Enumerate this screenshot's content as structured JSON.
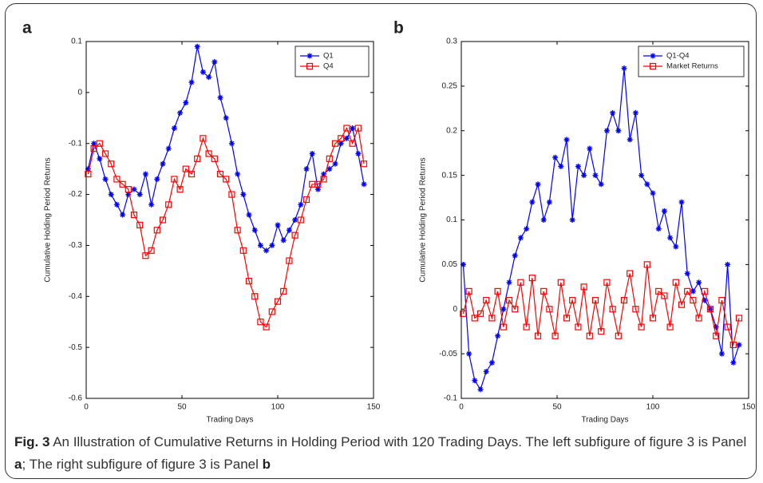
{
  "chart_data": [
    {
      "type": "line",
      "panel_label": "a",
      "xlabel": "Trading Days",
      "ylabel": "Cumulative Holding Period Returns",
      "x": [
        1,
        4,
        7,
        10,
        13,
        16,
        19,
        22,
        25,
        28,
        31,
        34,
        37,
        40,
        43,
        46,
        49,
        52,
        55,
        58,
        61,
        64,
        67,
        70,
        73,
        76,
        79,
        82,
        85,
        88,
        91,
        94,
        97,
        100,
        103,
        106,
        109,
        112,
        115,
        118,
        121,
        124,
        127,
        130,
        133,
        136,
        139,
        142,
        145
      ],
      "series": [
        {
          "name": "Q1",
          "color": "#0000ff",
          "marker": "star",
          "values": [
            -0.15,
            -0.1,
            -0.13,
            -0.17,
            -0.2,
            -0.22,
            -0.24,
            -0.2,
            -0.19,
            -0.2,
            -0.16,
            -0.22,
            -0.17,
            -0.14,
            -0.11,
            -0.07,
            -0.04,
            -0.02,
            0.02,
            0.09,
            0.04,
            0.03,
            0.06,
            -0.01,
            -0.05,
            -0.1,
            -0.16,
            -0.2,
            -0.24,
            -0.27,
            -0.3,
            -0.31,
            -0.3,
            -0.26,
            -0.29,
            -0.27,
            -0.25,
            -0.22,
            -0.15,
            -0.12,
            -0.19,
            -0.16,
            -0.15,
            -0.14,
            -0.1,
            -0.09,
            -0.07,
            -0.12,
            -0.18
          ]
        },
        {
          "name": "Q4",
          "color": "#ff0000",
          "marker": "square",
          "values": [
            -0.16,
            -0.11,
            -0.1,
            -0.12,
            -0.14,
            -0.17,
            -0.18,
            -0.19,
            -0.24,
            -0.26,
            -0.32,
            -0.31,
            -0.27,
            -0.25,
            -0.22,
            -0.17,
            -0.19,
            -0.15,
            -0.16,
            -0.13,
            -0.09,
            -0.12,
            -0.13,
            -0.16,
            -0.17,
            -0.2,
            -0.27,
            -0.31,
            -0.37,
            -0.4,
            -0.45,
            -0.46,
            -0.43,
            -0.41,
            -0.39,
            -0.33,
            -0.28,
            -0.25,
            -0.21,
            -0.18,
            -0.18,
            -0.17,
            -0.13,
            -0.1,
            -0.09,
            -0.07,
            -0.1,
            -0.07,
            -0.14
          ]
        }
      ],
      "xlim": [
        0,
        150
      ],
      "xticks": [
        0,
        50,
        100,
        150
      ],
      "ylim": [
        -0.6,
        0.1
      ],
      "yticks": [
        -0.6,
        -0.5,
        -0.4,
        -0.3,
        -0.2,
        -0.1,
        0,
        0.1
      ],
      "legend": "upper right"
    },
    {
      "type": "line",
      "panel_label": "b",
      "xlabel": "Trading Days",
      "ylabel": "Cumulative Holding Period Returns",
      "x": [
        1,
        4,
        7,
        10,
        13,
        16,
        19,
        22,
        25,
        28,
        31,
        34,
        37,
        40,
        43,
        46,
        49,
        52,
        55,
        58,
        61,
        64,
        67,
        70,
        73,
        76,
        79,
        82,
        85,
        88,
        91,
        94,
        97,
        100,
        103,
        106,
        109,
        112,
        115,
        118,
        121,
        124,
        127,
        130,
        133,
        136,
        139,
        142,
        145
      ],
      "series": [
        {
          "name": "Q1-Q4",
          "color": "#0000ff",
          "marker": "star",
          "values": [
            0.05,
            -0.05,
            -0.08,
            -0.09,
            -0.07,
            -0.06,
            -0.03,
            0,
            0.03,
            0.06,
            0.08,
            0.09,
            0.12,
            0.14,
            0.1,
            0.12,
            0.17,
            0.16,
            0.19,
            0.1,
            0.16,
            0.15,
            0.18,
            0.15,
            0.14,
            0.2,
            0.22,
            0.2,
            0.27,
            0.19,
            0.22,
            0.15,
            0.14,
            0.13,
            0.09,
            0.11,
            0.08,
            0.07,
            0.12,
            0.04,
            0.02,
            0.03,
            0.01,
            0,
            -0.02,
            -0.05,
            0.05,
            -0.06,
            -0.04
          ]
        },
        {
          "name": "Market Returns",
          "color": "#ff0000",
          "marker": "square",
          "values": [
            -0.005,
            0.02,
            -0.01,
            -0.005,
            0.01,
            -0.01,
            0.02,
            -0.02,
            0.01,
            0,
            0.03,
            -0.02,
            0.035,
            -0.03,
            0.02,
            0,
            -0.03,
            0.03,
            -0.01,
            0.01,
            -0.02,
            0.025,
            -0.03,
            0.01,
            -0.025,
            0.03,
            0,
            -0.03,
            0.01,
            0.04,
            0,
            -0.02,
            0.05,
            -0.01,
            0.02,
            0.015,
            -0.02,
            0.03,
            0.005,
            0.02,
            0.01,
            -0.01,
            0.02,
            0,
            -0.03,
            0.01,
            -0.02,
            -0.04,
            -0.01
          ]
        }
      ],
      "xlim": [
        0,
        150
      ],
      "xticks": [
        0,
        50,
        100,
        150
      ],
      "ylim": [
        -0.1,
        0.3
      ],
      "yticks": [
        -0.1,
        -0.05,
        0,
        0.05,
        0.1,
        0.15,
        0.2,
        0.25,
        0.3
      ],
      "legend": "upper right"
    }
  ],
  "caption": {
    "label": "Fig. 3",
    "text": " An Illustration of Cumulative Returns in Holding Period with 120 Trading Days. The left subfigure of figure 3 is Panel ",
    "panel_a": "a",
    "middle": "; The right subfigure of figure 3 is Panel ",
    "panel_b": "b"
  }
}
